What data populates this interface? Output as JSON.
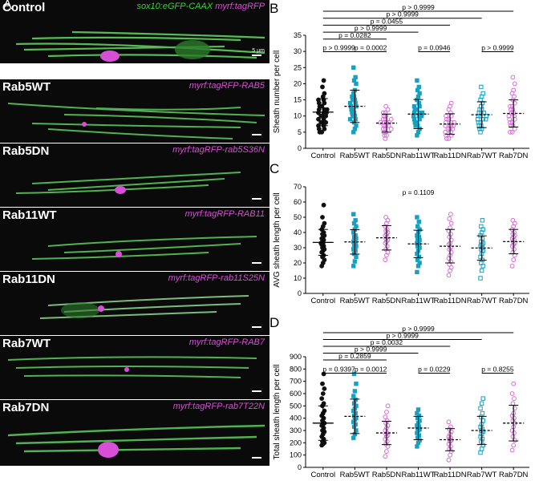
{
  "panel_letters": [
    "A",
    "B",
    "C",
    "D"
  ],
  "panels": [
    {
      "label": "Control",
      "tag_green": "sox10:eGFP-CAAX",
      "tag_magenta": "myrf:tagRFP",
      "scale": "5 µm"
    },
    {
      "label": "Rab5WT",
      "tag_magenta": "myrf:tagRFP-RAB5"
    },
    {
      "label": "Rab5DN",
      "tag_magenta": "myrf:tagRFP-rab5S36N"
    },
    {
      "label": "Rab11WT",
      "tag_magenta": "myrf:tagRFP-RAB11"
    },
    {
      "label": "Rab11DN",
      "tag_magenta": "myrf:tagRFP-rab11S25N"
    },
    {
      "label": "Rab7WT",
      "tag_magenta": "myrf:tagRFP-RAB7"
    },
    {
      "label": "Rab7DN",
      "tag_magenta": "myrf:tagRFP-rab7T22N"
    }
  ],
  "colors": {
    "Control": "#111111",
    "WT": "#1a9fbf",
    "DN": "#d46bd4",
    "green": "#3ed13e",
    "magenta": "#d64fd6"
  },
  "chart_data": [
    {
      "type": "scatter",
      "letter": "B",
      "ylabel": "Sheath number per cell",
      "ylim": [
        0,
        35
      ],
      "yticks": [
        0,
        5,
        10,
        15,
        20,
        25,
        30,
        35
      ],
      "categories": [
        "Control",
        "Rab5WT",
        "Rab5DN",
        "Rab11WT",
        "Rab11DN",
        "Rab7WT",
        "Rab7DN"
      ],
      "marker": [
        "circle",
        "square",
        "circle-open",
        "square",
        "circle-open",
        "square-open",
        "circle-open"
      ],
      "means": [
        11.2,
        13.0,
        7.8,
        10.6,
        7.5,
        10.4,
        10.8
      ],
      "sd": [
        4.2,
        5.0,
        2.8,
        4.5,
        3.2,
        4.0,
        4.2
      ],
      "values": [
        [
          5,
          5,
          6,
          6,
          7,
          7,
          8,
          8,
          8,
          9,
          9,
          10,
          10,
          10,
          11,
          11,
          11,
          12,
          12,
          12,
          13,
          13,
          14,
          14,
          15,
          15,
          16,
          17,
          19,
          21
        ],
        [
          5,
          6,
          7,
          8,
          9,
          9,
          10,
          10,
          11,
          11,
          12,
          12,
          13,
          13,
          14,
          14,
          15,
          15,
          16,
          16,
          17,
          18,
          20,
          21,
          22,
          25
        ],
        [
          3,
          4,
          4,
          5,
          5,
          6,
          6,
          6,
          7,
          7,
          7,
          8,
          8,
          8,
          8,
          9,
          9,
          9,
          10,
          10,
          11,
          11,
          12,
          13
        ],
        [
          4,
          5,
          6,
          7,
          7,
          8,
          8,
          9,
          9,
          10,
          10,
          10,
          11,
          11,
          11,
          12,
          12,
          13,
          13,
          14,
          15,
          16,
          17,
          18,
          19,
          21
        ],
        [
          3,
          3,
          4,
          4,
          5,
          5,
          6,
          6,
          6,
          7,
          7,
          7,
          8,
          8,
          8,
          9,
          9,
          10,
          10,
          11,
          12,
          13,
          14
        ],
        [
          5,
          6,
          6,
          7,
          7,
          8,
          8,
          9,
          9,
          9,
          10,
          10,
          10,
          11,
          11,
          11,
          12,
          12,
          13,
          14,
          15,
          16,
          17,
          19
        ],
        [
          5,
          5,
          6,
          7,
          7,
          8,
          8,
          9,
          9,
          10,
          10,
          11,
          11,
          12,
          12,
          13,
          13,
          14,
          15,
          16,
          17,
          18,
          20,
          22
        ]
      ],
      "comparisons": [
        {
          "from": 0,
          "to": 6,
          "text": "p > 0.9999"
        },
        {
          "from": 0,
          "to": 5,
          "text": "p > 0.9999"
        },
        {
          "from": 0,
          "to": 4,
          "text": "p = 0.0455"
        },
        {
          "from": 0,
          "to": 3,
          "text": "p > 0.9999"
        },
        {
          "from": 0,
          "to": 2,
          "text": "p = 0.0282"
        },
        {
          "from": 0,
          "to": 1,
          "text": "p > 0.9999"
        },
        {
          "from": 1,
          "to": 2,
          "text": "p = 0.0002"
        },
        {
          "from": 3,
          "to": 4,
          "text": "p = 0.0946"
        },
        {
          "from": 5,
          "to": 6,
          "text": "p > 0.9999"
        }
      ]
    },
    {
      "type": "scatter",
      "letter": "C",
      "ylabel": "AVG sheath length per cell",
      "ylim": [
        0,
        70
      ],
      "yticks": [
        0,
        10,
        20,
        30,
        40,
        50,
        60,
        70
      ],
      "categories": [
        "Control",
        "Rab5WT",
        "Rab5DN",
        "Rab11WT",
        "Rab11DN",
        "Rab7WT",
        "Rab7DN"
      ],
      "marker": [
        "circle",
        "square",
        "circle-open",
        "square",
        "circle-open",
        "square-open",
        "circle-open"
      ],
      "means": [
        33.5,
        33.8,
        36.5,
        32.5,
        31.0,
        29.8,
        34.0
      ],
      "sd": [
        8.5,
        8.0,
        8.0,
        9.0,
        11.0,
        8.0,
        8.0
      ],
      "values": [
        [
          18,
          20,
          22,
          24,
          25,
          27,
          28,
          29,
          30,
          31,
          32,
          33,
          33,
          34,
          35,
          36,
          37,
          38,
          39,
          40,
          42,
          44,
          46,
          50,
          58
        ],
        [
          18,
          21,
          24,
          26,
          28,
          29,
          30,
          31,
          32,
          33,
          34,
          35,
          36,
          37,
          38,
          40,
          42,
          44,
          46,
          48,
          52
        ],
        [
          22,
          25,
          27,
          29,
          31,
          33,
          34,
          35,
          36,
          37,
          38,
          39,
          40,
          41,
          42,
          44,
          46,
          48,
          50
        ],
        [
          14,
          18,
          20,
          22,
          24,
          26,
          28,
          30,
          31,
          32,
          33,
          34,
          35,
          36,
          37,
          38,
          40,
          42,
          44,
          47,
          50
        ],
        [
          12,
          15,
          17,
          19,
          21,
          23,
          25,
          27,
          29,
          30,
          32,
          33,
          35,
          37,
          39,
          41,
          43,
          46,
          49,
          52
        ],
        [
          10,
          15,
          18,
          20,
          22,
          24,
          26,
          28,
          29,
          30,
          31,
          32,
          33,
          34,
          36,
          38,
          40,
          42,
          44,
          48
        ],
        [
          18,
          22,
          25,
          27,
          29,
          31,
          32,
          33,
          34,
          35,
          36,
          37,
          38,
          39,
          40,
          42,
          44,
          46,
          48
        ]
      ],
      "annotation": "p = 0.1109"
    },
    {
      "type": "scatter",
      "letter": "D",
      "ylabel": "Total sheath length per cell",
      "ylim": [
        0,
        900
      ],
      "yticks": [
        0,
        100,
        200,
        300,
        400,
        500,
        600,
        700,
        800,
        900
      ],
      "categories": [
        "Control",
        "Rab5WT",
        "Rab5DN",
        "Rab11WT",
        "Rab11DN",
        "Rab7WT",
        "Rab7DN"
      ],
      "marker": [
        "circle",
        "square",
        "circle-open",
        "square",
        "circle-open",
        "square-open",
        "circle-open"
      ],
      "means": [
        360,
        415,
        280,
        320,
        225,
        300,
        360
      ],
      "sd": [
        140,
        140,
        95,
        95,
        90,
        115,
        145
      ],
      "values": [
        [
          180,
          190,
          200,
          210,
          230,
          250,
          270,
          290,
          300,
          320,
          340,
          350,
          360,
          380,
          400,
          420,
          440,
          460,
          500,
          520,
          560,
          600,
          640,
          680,
          760
        ],
        [
          240,
          270,
          300,
          330,
          350,
          370,
          390,
          400,
          420,
          440,
          460,
          480,
          500,
          520,
          550,
          580,
          620,
          680,
          760
        ],
        [
          90,
          130,
          170,
          190,
          210,
          230,
          250,
          260,
          270,
          280,
          300,
          320,
          340,
          360,
          380,
          410,
          450,
          500
        ],
        [
          170,
          200,
          220,
          240,
          260,
          280,
          300,
          310,
          320,
          330,
          340,
          360,
          380,
          400,
          420,
          440,
          470
        ],
        [
          60,
          100,
          130,
          150,
          170,
          190,
          210,
          220,
          230,
          240,
          250,
          270,
          290,
          310,
          330,
          370
        ],
        [
          120,
          150,
          180,
          210,
          230,
          250,
          270,
          290,
          300,
          310,
          330,
          350,
          380,
          410,
          440,
          480,
          520,
          560
        ],
        [
          140,
          180,
          220,
          250,
          280,
          300,
          330,
          360,
          380,
          400,
          420,
          440,
          480,
          520,
          560,
          600,
          680
        ]
      ],
      "comparisons": [
        {
          "from": 0,
          "to": 6,
          "text": "p > 0.9999"
        },
        {
          "from": 0,
          "to": 5,
          "text": "p > 0.9999"
        },
        {
          "from": 0,
          "to": 4,
          "text": "p = 0.0032"
        },
        {
          "from": 0,
          "to": 3,
          "text": "p > 0.9999"
        },
        {
          "from": 0,
          "to": 2,
          "text": "p = 0.2859"
        },
        {
          "from": 0,
          "to": 1,
          "text": "p = 0.9397"
        },
        {
          "from": 1,
          "to": 2,
          "text": "p = 0.0012"
        },
        {
          "from": 3,
          "to": 4,
          "text": "p = 0.0229"
        },
        {
          "from": 5,
          "to": 6,
          "text": "p = 0.8255"
        }
      ]
    }
  ]
}
